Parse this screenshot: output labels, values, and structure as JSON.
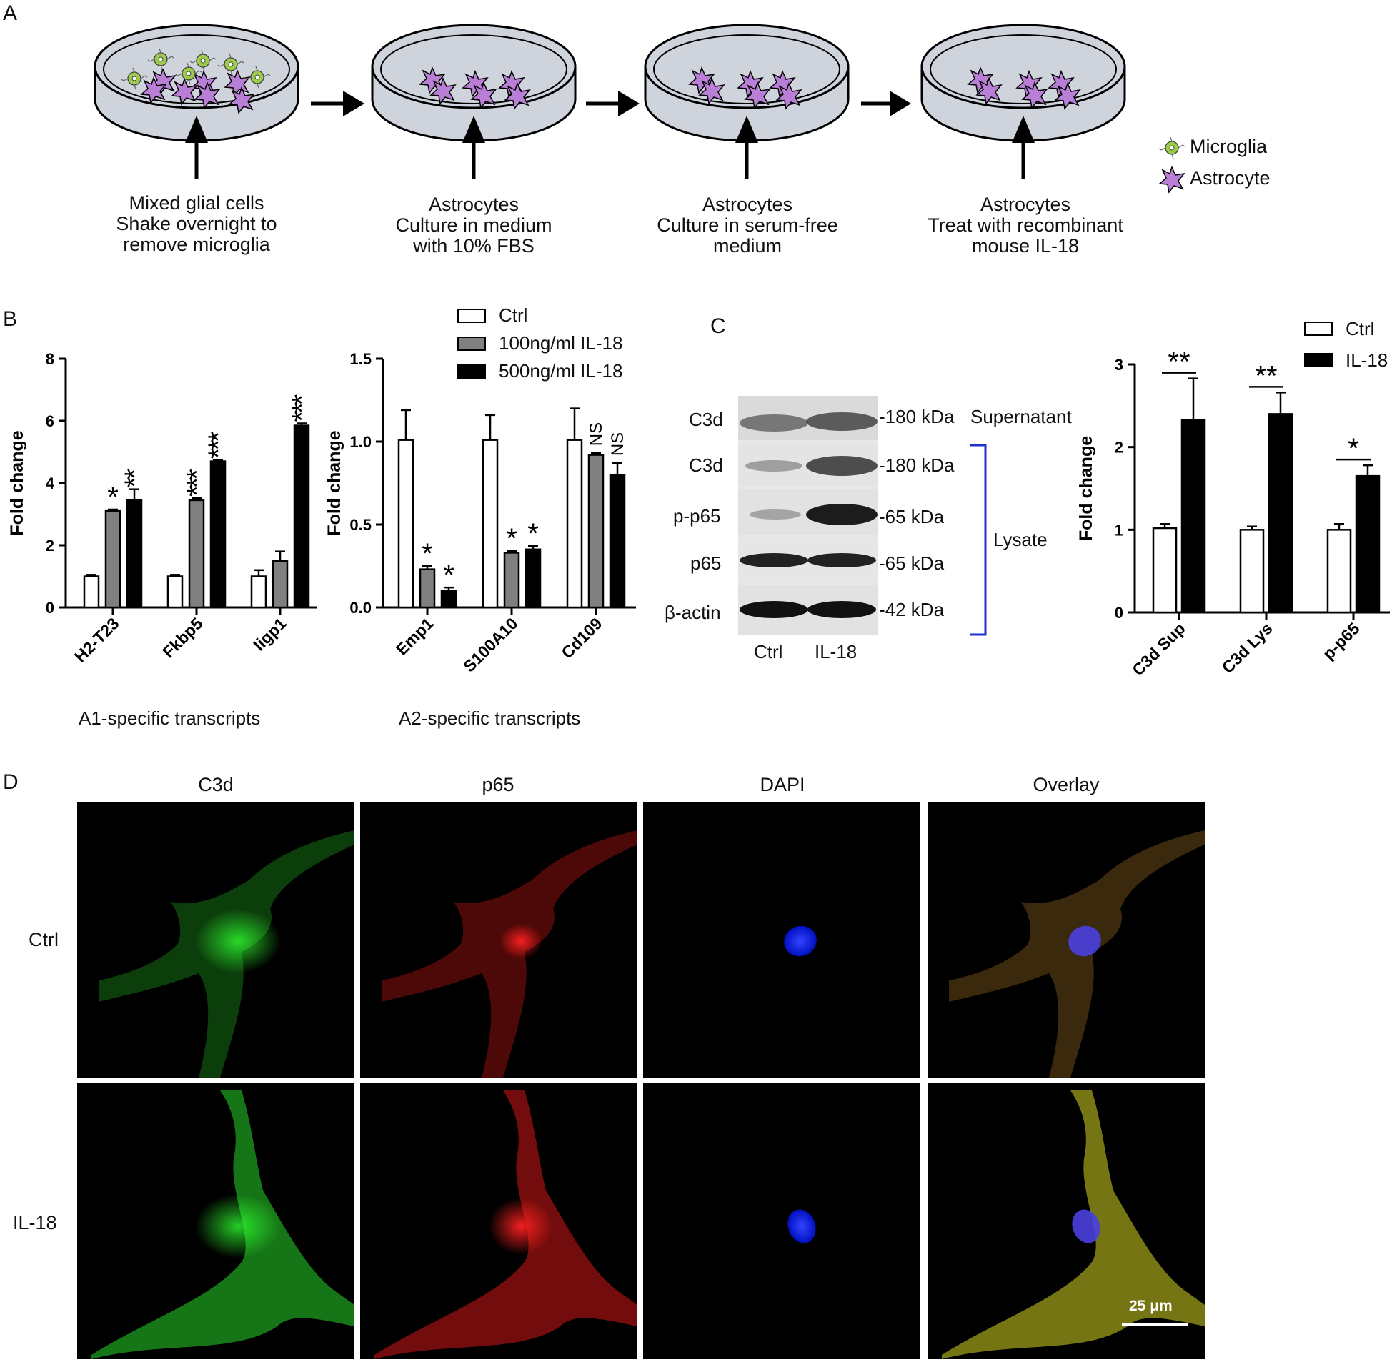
{
  "panel_letters": {
    "a": "A",
    "b": "B",
    "c": "C",
    "d": "D"
  },
  "panelA": {
    "steps": [
      {
        "line1": "Mixed glial cells",
        "line2": "Shake overnight to",
        "line3": "remove microglia"
      },
      {
        "line1": "Astrocytes",
        "line2": "Culture in medium",
        "line3": "with 10% FBS"
      },
      {
        "line1": "Astrocytes",
        "line2": "Culture in serum-free",
        "line3": "medium"
      },
      {
        "line1": "Astrocytes",
        "line2": "Treat with recombinant",
        "line3": "mouse IL-18"
      }
    ],
    "legend": {
      "microglia": "Microglia",
      "astrocyte": "Astrocyte"
    },
    "colors": {
      "dish_fill": "#cfd3dc",
      "astrocyte": "#b97fd6",
      "microglia": "#9ccc4a"
    }
  },
  "panelB": {
    "legend": [
      "Ctrl",
      "100ng/ml IL-18",
      "500ng/ml IL-18"
    ],
    "ylabel": "Fold change",
    "captions": {
      "a1": "A1-specific transcripts",
      "a2": "A2-specific transcripts"
    }
  },
  "panelC": {
    "blot_rows": [
      {
        "label": "C3d",
        "kda": "-180 kDa"
      },
      {
        "label": "C3d",
        "kda": "-180 kDa"
      },
      {
        "label": "p-p65",
        "kda": "-65 kDa"
      },
      {
        "label": "p65",
        "kda": "-65 kDa"
      },
      {
        "label": "β-actin",
        "kda": "-42 kDa"
      }
    ],
    "supernatant": "Supernatant",
    "lysate": "Lysate",
    "lanes": [
      "Ctrl",
      "IL-18"
    ],
    "legend": [
      "Ctrl",
      "IL-18"
    ],
    "ylabel": "Fold change"
  },
  "panelD": {
    "columns": [
      "C3d",
      "p65",
      "DAPI",
      "Overlay"
    ],
    "rows": [
      "Ctrl",
      "IL-18"
    ],
    "scale_bar": "25 μm"
  },
  "chart_data": [
    {
      "type": "bar",
      "categories": [
        "H2-T23",
        "Fkbp5",
        "Iigp1"
      ],
      "series": [
        {
          "name": "Ctrl",
          "values": [
            1.0,
            1.0,
            1.0
          ],
          "errors": [
            0.05,
            0.05,
            0.2
          ]
        },
        {
          "name": "100ng/ml IL-18",
          "values": [
            3.1,
            3.45,
            1.5
          ],
          "errors": [
            0.05,
            0.07,
            0.3
          ]
        },
        {
          "name": "500ng/ml IL-18",
          "values": [
            3.45,
            4.7,
            5.85
          ],
          "errors": [
            0.35,
            0.03,
            0.07
          ]
        }
      ],
      "significance": [
        [
          "",
          "*",
          "**"
        ],
        [
          "",
          "***",
          "***"
        ],
        [
          "",
          "",
          "***"
        ]
      ],
      "ylabel": "Fold change",
      "ylim": [
        0,
        8
      ],
      "yticks": [
        0,
        2,
        4,
        6,
        8
      ],
      "caption": "A1-specific transcripts"
    },
    {
      "type": "bar",
      "categories": [
        "Emp1",
        "S100A10",
        "Cd109"
      ],
      "series": [
        {
          "name": "Ctrl",
          "values": [
            1.01,
            1.01,
            1.01
          ],
          "errors": [
            0.18,
            0.15,
            0.19
          ]
        },
        {
          "name": "100ng/ml IL-18",
          "values": [
            0.23,
            0.33,
            0.92
          ],
          "errors": [
            0.02,
            0.01,
            0.01
          ]
        },
        {
          "name": "500ng/ml IL-18",
          "values": [
            0.1,
            0.35,
            0.8
          ],
          "errors": [
            0.02,
            0.02,
            0.07
          ]
        }
      ],
      "significance": [
        [
          "",
          "*",
          "*"
        ],
        [
          "",
          "*",
          "*"
        ],
        [
          "",
          "NS",
          "NS"
        ]
      ],
      "ylabel": "Fold change",
      "ylim": [
        0,
        1.5
      ],
      "yticks": [
        "0.0",
        "0.5",
        "1.0",
        "1.5"
      ],
      "caption": "A2-specific transcripts"
    },
    {
      "type": "bar",
      "categories": [
        "C3d Sup",
        "C3d Lys",
        "p-p65"
      ],
      "series": [
        {
          "name": "Ctrl",
          "values": [
            1.02,
            1.0,
            1.0
          ],
          "errors": [
            0.05,
            0.04,
            0.07
          ]
        },
        {
          "name": "IL-18",
          "values": [
            2.33,
            2.4,
            1.65
          ],
          "errors": [
            0.5,
            0.26,
            0.13
          ]
        }
      ],
      "significance": [
        "**",
        "**",
        "*"
      ],
      "ylabel": "Fold change",
      "ylim": [
        0,
        3
      ],
      "yticks": [
        0,
        1,
        2,
        3
      ]
    }
  ]
}
